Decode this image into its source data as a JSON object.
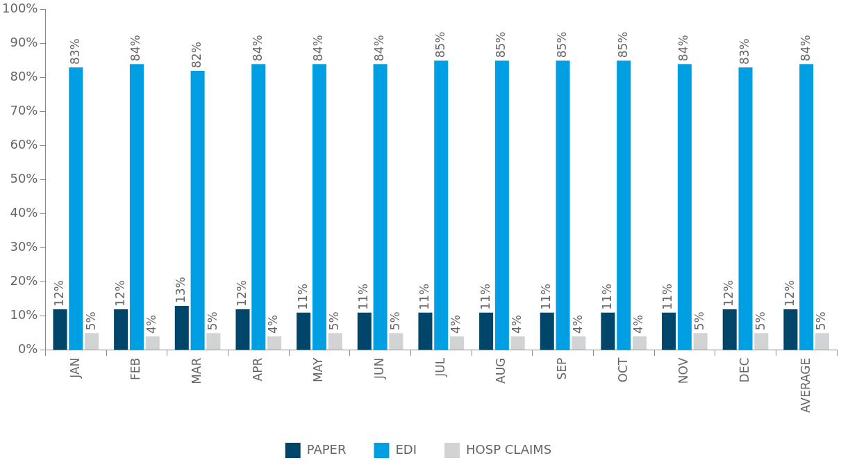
{
  "chart_data": {
    "type": "bar",
    "categories": [
      "JAN",
      "FEB",
      "MAR",
      "APR",
      "MAY",
      "JUN",
      "JUL",
      "AUG",
      "SEP",
      "OCT",
      "NOV",
      "DEC",
      "AVERAGE"
    ],
    "series": [
      {
        "name": "PAPER",
        "color": "#00466b",
        "values": [
          12,
          12,
          13,
          12,
          11,
          11,
          11,
          11,
          11,
          11,
          11,
          12,
          12
        ],
        "value_labels": [
          "12%",
          "12%",
          "13%",
          "12%",
          "11%",
          "11%",
          "11%",
          "11%",
          "11%",
          "11%",
          "11%",
          "12%",
          "12%"
        ]
      },
      {
        "name": "EDI",
        "color": "#009fe3",
        "values": [
          83,
          84,
          82,
          84,
          84,
          84,
          85,
          85,
          85,
          85,
          84,
          83,
          84
        ],
        "value_labels": [
          "83%",
          "84%",
          "82%",
          "84%",
          "84%",
          "84%",
          "85%",
          "85%",
          "85%",
          "85%",
          "84%",
          "83%",
          "84%"
        ]
      },
      {
        "name": "HOSP CLAIMS",
        "color": "#d1d3d4",
        "values": [
          5,
          4,
          5,
          4,
          5,
          5,
          4,
          4,
          4,
          4,
          5,
          5,
          5
        ],
        "value_labels": [
          "5%",
          "4%",
          "5%",
          "4%",
          "5%",
          "5%",
          "4%",
          "4%",
          "4%",
          "4%",
          "5%",
          "5%",
          "5%"
        ]
      }
    ],
    "ylim": [
      0,
      100
    ],
    "yticks": [
      {
        "value": 0,
        "label": "0%"
      },
      {
        "value": 10,
        "label": "10%"
      },
      {
        "value": 20,
        "label": "20%"
      },
      {
        "value": 30,
        "label": "30%"
      },
      {
        "value": 40,
        "label": "40%"
      },
      {
        "value": 50,
        "label": "50%"
      },
      {
        "value": 60,
        "label": "60%"
      },
      {
        "value": 70,
        "label": "70%"
      },
      {
        "value": 80,
        "label": "80%"
      },
      {
        "value": 90,
        "label": "90%"
      },
      {
        "value": 100,
        "label": "100%"
      }
    ],
    "grid": false,
    "legend": "bottom"
  }
}
